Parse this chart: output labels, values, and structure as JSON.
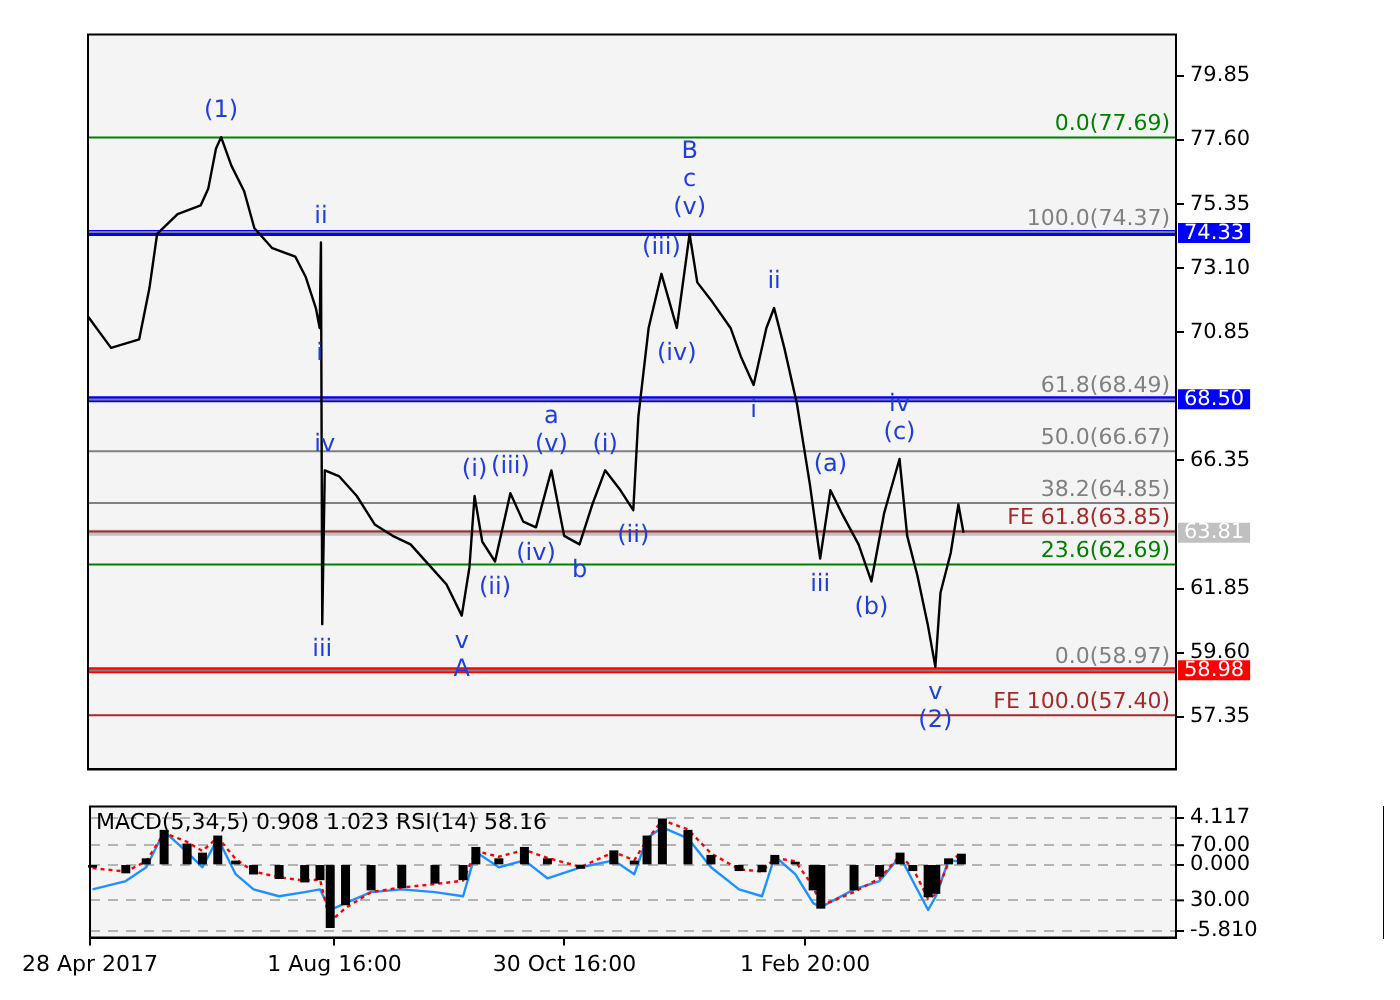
{
  "chart_data": [
    {
      "type": "line",
      "tick_labels": "y",
      "xlim": [
        "2017-04-28",
        "2018-06-27"
      ],
      "ylim": [
        55.5,
        81.3
      ],
      "yticks": [
        57.35,
        {
          "value": 59.6,
          "label": "59.60"
        },
        61.85,
        66.35,
        70.85,
        {
          "value": 73.1,
          "label": "73.10"
        },
        75.35,
        {
          "value": 77.6,
          "label": "77.60"
        },
        79.85
      ],
      "grid": false,
      "legend": false,
      "x": [
        "2017-04-28",
        "2017-05-07",
        "2017-05-18",
        "2017-05-22",
        "2017-05-25",
        "2017-06-02",
        "2017-06-11",
        "2017-06-14",
        "2017-06-17",
        "2017-06-19",
        "2017-06-23",
        "2017-06-28",
        "2017-07-02",
        "2017-07-09",
        "2017-07-18",
        "2017-07-22",
        "2017-07-26",
        "2017-07-27T12:00",
        "2017-07-28T00:00",
        "2017-07-28T12:00",
        "2017-07-29T12:00",
        "2017-08-04",
        "2017-08-11",
        "2017-08-18",
        "2017-08-25",
        "2017-09-01",
        "2017-09-08",
        "2017-09-15",
        "2017-09-21",
        "2017-09-24",
        "2017-09-26",
        "2017-09-29",
        "2017-10-04",
        "2017-10-10",
        "2017-10-15",
        "2017-10-20",
        "2017-10-26",
        "2017-10-31",
        "2017-11-06",
        "2017-11-11",
        "2017-11-16",
        "2017-11-22",
        "2017-11-27",
        "2017-11-29",
        "2017-12-03",
        "2017-12-08",
        "2017-12-14",
        "2017-12-19",
        "2017-12-22",
        "2017-12-28",
        "2018-01-04",
        "2018-01-08",
        "2018-01-13",
        "2018-01-18",
        "2018-01-21",
        "2018-01-25",
        "2018-01-30",
        "2018-02-04",
        "2018-02-08",
        "2018-02-12",
        "2018-02-17",
        "2018-02-23",
        "2018-02-28",
        "2018-03-05",
        "2018-03-11",
        "2018-03-14",
        "2018-03-18",
        "2018-03-22",
        "2018-03-25",
        "2018-03-27",
        "2018-03-31",
        "2018-04-03",
        "2018-04-05"
      ],
      "series": [
        {
          "color": "#000000",
          "values": [
            71.4,
            70.3,
            70.6,
            72.4,
            74.3,
            75.0,
            75.3,
            75.9,
            77.3,
            77.7,
            76.7,
            75.8,
            74.5,
            73.8,
            73.5,
            72.8,
            71.7,
            71.0,
            74.0,
            60.6,
            66.0,
            65.8,
            65.1,
            64.1,
            63.7,
            63.4,
            62.7,
            62.0,
            60.9,
            62.6,
            65.1,
            63.5,
            62.8,
            65.2,
            64.2,
            64.0,
            66.0,
            63.7,
            63.4,
            64.8,
            66.0,
            65.3,
            64.6,
            67.9,
            71.0,
            72.9,
            71.0,
            74.3,
            72.6,
            71.9,
            71.0,
            70.0,
            69.0,
            71.0,
            71.7,
            70.3,
            68.3,
            65.5,
            62.9,
            65.3,
            64.4,
            63.4,
            62.1,
            64.5,
            66.4,
            63.7,
            62.3,
            60.6,
            59.1,
            61.7,
            63.1,
            64.8,
            63.81
          ]
        }
      ],
      "ref_lines": [
        {
          "axis": "y",
          "value": 77.69,
          "label": "0.0(77.69)",
          "color": "#008000"
        },
        {
          "axis": "y",
          "value": 74.37,
          "label": "100.0(74.37)",
          "color": "#808080"
        },
        {
          "axis": "y",
          "value": 74.33,
          "label": "74.33",
          "color": "#0000ff"
        },
        {
          "axis": "y",
          "value": 68.49,
          "label": "61.8(68.49)",
          "color": "#808080"
        },
        {
          "axis": "y",
          "value": 68.5,
          "label": "68.50",
          "color": "#0000ff"
        },
        {
          "axis": "y",
          "value": 66.67,
          "label": "50.0(66.67)",
          "color": "#808080"
        },
        {
          "axis": "y",
          "value": 64.85,
          "label": "38.2(64.85)",
          "color": "#808080"
        },
        {
          "axis": "y",
          "value": 63.85,
          "label": "FE 61.8(63.85)",
          "color": "#a52a2a"
        },
        {
          "axis": "y",
          "value": 63.81,
          "label": "63.81",
          "color": "#c0c0c0"
        },
        {
          "axis": "y",
          "value": 62.69,
          "label": "23.6(62.69)",
          "color": "#008000"
        },
        {
          "axis": "y",
          "value": 58.97,
          "label": "0.0(58.97)",
          "color": "#808080"
        },
        {
          "axis": "y",
          "value": 58.98,
          "label": "58.98",
          "color": "#ff0000"
        },
        {
          "axis": "y",
          "value": 57.4,
          "label": "FE 100.0(57.40)",
          "color": "#a52a2a"
        }
      ],
      "annotations": [
        {
          "text": "(1)",
          "x": "2017-06-19",
          "y": 77.7
        },
        {
          "text": "ii",
          "x": "2017-07-28T00:00",
          "y": 74.0
        },
        {
          "text": "i",
          "x": "2017-07-27T12:00",
          "y": 71.0
        },
        {
          "text": "iv",
          "x": "2017-07-29T12:00",
          "y": 66.0
        },
        {
          "text": "iii",
          "x": "2017-07-28T12:00",
          "y": 60.6
        },
        {
          "text": "v",
          "x": "2017-09-21",
          "y": 60.9
        },
        {
          "text": "A",
          "x": "2017-09-21",
          "y": 60.9
        },
        {
          "text": "(i)",
          "x": "2017-09-26",
          "y": 65.1
        },
        {
          "text": "(ii)",
          "x": "2017-10-04",
          "y": 62.8
        },
        {
          "text": "(iii)",
          "x": "2017-10-10",
          "y": 65.2
        },
        {
          "text": "(v)",
          "x": "2017-10-26",
          "y": 66.0
        },
        {
          "text": "a",
          "x": "2017-10-26",
          "y": 66.0
        },
        {
          "text": "(iv)",
          "x": "2017-10-20",
          "y": 64.0
        },
        {
          "text": "b",
          "x": "2017-11-06",
          "y": 63.4
        },
        {
          "text": "(i)",
          "x": "2017-11-16",
          "y": 66.0
        },
        {
          "text": "(ii)",
          "x": "2017-11-27",
          "y": 64.6
        },
        {
          "text": "(iii)",
          "x": "2017-12-08",
          "y": 72.9
        },
        {
          "text": "(iv)",
          "x": "2017-12-14",
          "y": 71.0
        },
        {
          "text": "(v)",
          "x": "2017-12-19",
          "y": 74.3
        },
        {
          "text": "c",
          "x": "2017-12-19",
          "y": 74.3
        },
        {
          "text": "B",
          "x": "2017-12-19",
          "y": 74.3
        },
        {
          "text": "ii",
          "x": "2018-01-21",
          "y": 71.7
        },
        {
          "text": "i",
          "x": "2018-01-13",
          "y": 69.0
        },
        {
          "text": "(a)",
          "x": "2018-02-12",
          "y": 65.3
        },
        {
          "text": "(c)",
          "x": "2018-03-11",
          "y": 66.4
        },
        {
          "text": "iv",
          "x": "2018-03-11",
          "y": 66.4
        },
        {
          "text": "iii",
          "x": "2018-02-08",
          "y": 62.9
        },
        {
          "text": "(b)",
          "x": "2018-02-28",
          "y": 62.1
        },
        {
          "text": "v",
          "x": "2018-03-25",
          "y": 59.1
        },
        {
          "text": "(2)",
          "x": "2018-03-25",
          "y": 59.1
        }
      ]
    },
    {
      "type": "bar",
      "title": "MACD(5,34,5) 0.908 1.023 RSI(14) 58.16",
      "xlim": [
        "2017-04-28",
        "2018-06-27"
      ],
      "xticks": [
        {
          "value": "2017-04-28",
          "label": "28 Apr 2017"
        },
        {
          "value": "2017-08-01T16:00",
          "label": "1 Aug 16:00"
        },
        {
          "value": "2017-10-30T16:00",
          "label": "30 Oct 16:00"
        },
        {
          "value": "2018-02-01T20:00",
          "label": "1 Feb 20:00"
        }
      ],
      "ylim": [
        -6.4,
        5.1
      ],
      "yticks": [
        {
          "value": -5.81,
          "label": "-5.810"
        },
        {
          "value": 0,
          "label": "0.000"
        },
        {
          "value": 4.117,
          "label": "4.117"
        }
      ],
      "y2lim": [
        3,
        98
      ],
      "y2ticks": [
        {
          "value": 30,
          "label": "30.00"
        },
        {
          "value": 70,
          "label": "70.00"
        }
      ],
      "grid": "y",
      "legend": false,
      "x": [
        "2017-04-29",
        "2017-05-12",
        "2017-05-20",
        "2017-05-27",
        "2017-06-05",
        "2017-06-11",
        "2017-06-17",
        "2017-06-24",
        "2017-07-01",
        "2017-07-11",
        "2017-07-21",
        "2017-07-27",
        "2017-07-31",
        "2017-08-06",
        "2017-08-16",
        "2017-08-28",
        "2017-09-10",
        "2017-09-21",
        "2017-09-26",
        "2017-10-05",
        "2017-10-15",
        "2017-10-24",
        "2017-11-06",
        "2017-11-19",
        "2017-11-27",
        "2017-12-02",
        "2017-12-08",
        "2017-12-18",
        "2017-12-27",
        "2018-01-07",
        "2018-01-16",
        "2018-01-21",
        "2018-01-29",
        "2018-02-05",
        "2018-02-08",
        "2018-02-21",
        "2018-03-03",
        "2018-03-11",
        "2018-03-16",
        "2018-03-22",
        "2018-03-25",
        "2018-03-30",
        "2018-04-04"
      ],
      "series": [
        {
          "color": "#000000",
          "values": [
            -0.2,
            -0.7,
            0.5,
            3.0,
            1.8,
            1.0,
            2.5,
            0.3,
            -0.8,
            -1.2,
            -1.5,
            -1.3,
            -5.5,
            -3.5,
            -2.2,
            -2.0,
            -1.6,
            -1.3,
            1.5,
            0.5,
            1.5,
            0.5,
            -0.3,
            1.2,
            0.3,
            2.5,
            4.0,
            3.0,
            0.8,
            -0.5,
            -0.6,
            0.8,
            0.2,
            -2.2,
            -3.8,
            -2.2,
            -1.0,
            1.0,
            -0.5,
            -2.8,
            -2.5,
            0.5,
            0.908
          ]
        },
        {
          "type": "line",
          "color": "#ff0000",
          "line_style": "dotted",
          "values": [
            -0.3,
            -0.6,
            0.3,
            2.8,
            2.0,
            1.2,
            2.4,
            0.5,
            -0.6,
            -1.1,
            -1.4,
            -1.3,
            -5.0,
            -3.8,
            -2.4,
            -2.0,
            -1.7,
            -1.4,
            1.2,
            0.7,
            1.3,
            0.6,
            -0.2,
            1.1,
            0.4,
            2.2,
            3.9,
            3.1,
            1.0,
            -0.4,
            -0.6,
            0.6,
            0.3,
            -1.9,
            -3.6,
            -2.4,
            -1.2,
            0.8,
            -0.3,
            -3.0,
            -2.6,
            0.2,
            1.023
          ]
        },
        {
          "type": "line",
          "axis": "y2",
          "color": "#1e90ff",
          "values": [
            38,
            44,
            54,
            80,
            65,
            54,
            75,
            49,
            38,
            33,
            36,
            38,
            23,
            28,
            36,
            38,
            36,
            33,
            65,
            54,
            59,
            46,
            54,
            59,
            49,
            75,
            83,
            75,
            54,
            38,
            33,
            62,
            49,
            28,
            25,
            38,
            44,
            62,
            44,
            23,
            33,
            59,
            58.16
          ]
        }
      ]
    }
  ]
}
